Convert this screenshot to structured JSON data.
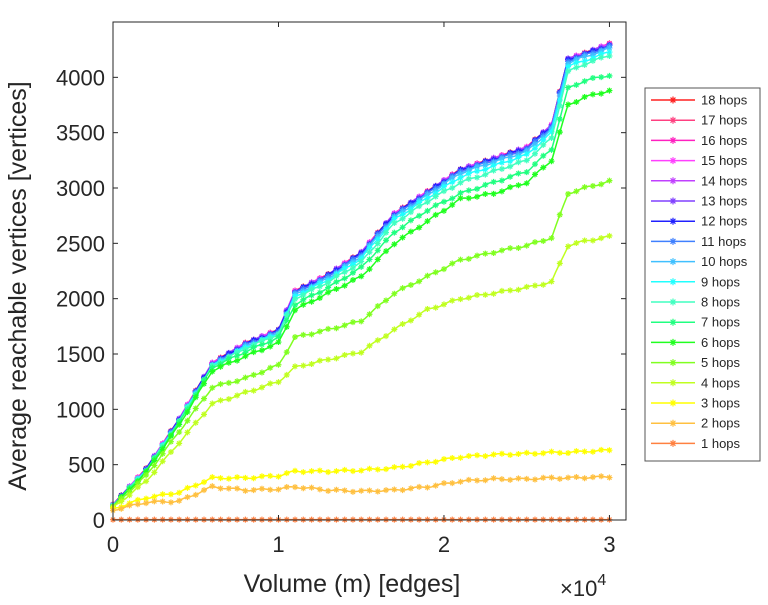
{
  "chart_data": {
    "type": "line",
    "title": "",
    "xlabel": "Volume (m) [edges]",
    "ylabel": "Average reachable vertices [vertices]",
    "x_multiplier_label": "×10",
    "x_multiplier_exp": "4",
    "xlim": [
      0,
      31000
    ],
    "ylim": [
      0,
      4500
    ],
    "xticks": [
      0,
      10000,
      20000,
      30000
    ],
    "xtick_labels": [
      "0",
      "1",
      "2",
      "3"
    ],
    "yticks": [
      0,
      500,
      1000,
      1500,
      2000,
      2500,
      3000,
      3500,
      4000
    ],
    "ytick_labels": [
      "0",
      "500",
      "1000",
      "1500",
      "2000",
      "2500",
      "3000",
      "3500",
      "4000"
    ],
    "grid": false,
    "legend_position": "right-outside",
    "x": [
      0,
      2000,
      4000,
      6000,
      8000,
      10000,
      11000,
      13000,
      15000,
      17000,
      19000,
      21000,
      23000,
      25000,
      26500,
      27500,
      28500,
      30000
    ],
    "series": [
      {
        "name": "18 hops",
        "color": "#ff2020",
        "values": [
          135,
          460,
          910,
          1415,
          1595,
          1715,
          2065,
          2215,
          2415,
          2765,
          2965,
          3165,
          3265,
          3365,
          3565,
          4165,
          4215,
          4300
        ]
      },
      {
        "name": "17 hops",
        "color": "#ff4080",
        "values": [
          135,
          460,
          910,
          1415,
          1595,
          1715,
          2065,
          2215,
          2415,
          2765,
          2965,
          3165,
          3265,
          3365,
          3565,
          4165,
          4215,
          4300
        ]
      },
      {
        "name": "16 hops",
        "color": "#ff20c0",
        "values": [
          135,
          460,
          910,
          1415,
          1595,
          1715,
          2065,
          2215,
          2415,
          2765,
          2965,
          3165,
          3265,
          3365,
          3565,
          4165,
          4215,
          4300
        ]
      },
      {
        "name": "15 hops",
        "color": "#ff40ff",
        "values": [
          135,
          460,
          910,
          1415,
          1595,
          1715,
          2065,
          2215,
          2415,
          2765,
          2965,
          3165,
          3265,
          3365,
          3565,
          4165,
          4215,
          4300
        ]
      },
      {
        "name": "14 hops",
        "color": "#c040ff",
        "values": [
          135,
          460,
          910,
          1415,
          1595,
          1715,
          2065,
          2215,
          2415,
          2765,
          2965,
          3165,
          3265,
          3365,
          3565,
          4165,
          4215,
          4300
        ]
      },
      {
        "name": "13 hops",
        "color": "#8040ff",
        "values": [
          133,
          458,
          908,
          1412,
          1592,
          1712,
          2062,
          2212,
          2412,
          2762,
          2962,
          3162,
          3262,
          3362,
          3562,
          4162,
          4212,
          4295
        ]
      },
      {
        "name": "12 hops",
        "color": "#2020ff",
        "values": [
          132,
          455,
          905,
          1410,
          1590,
          1710,
          2060,
          2210,
          2410,
          2760,
          2960,
          3160,
          3260,
          3360,
          3560,
          4160,
          4210,
          4290
        ]
      },
      {
        "name": "11 hops",
        "color": "#4080ff",
        "values": [
          130,
          450,
          900,
          1400,
          1580,
          1700,
          2050,
          2200,
          2400,
          2750,
          2950,
          3150,
          3250,
          3350,
          3550,
          4150,
          4200,
          4280
        ]
      },
      {
        "name": "10 hops",
        "color": "#40c0ff",
        "values": [
          130,
          448,
          895,
          1395,
          1570,
          1690,
          2035,
          2185,
          2385,
          2735,
          2935,
          3135,
          3235,
          3330,
          3530,
          4130,
          4185,
          4260
        ]
      },
      {
        "name": "9 hops",
        "color": "#20ffff",
        "values": [
          130,
          446,
          892,
          1392,
          1560,
          1685,
          2020,
          2170,
          2365,
          2715,
          2910,
          3100,
          3200,
          3300,
          3500,
          4100,
          4150,
          4230
        ]
      },
      {
        "name": "8 hops",
        "color": "#40ffc0",
        "values": [
          130,
          445,
          890,
          1390,
          1550,
          1680,
          2000,
          2150,
          2330,
          2680,
          2880,
          3050,
          3150,
          3250,
          3450,
          4050,
          4120,
          4200
        ]
      },
      {
        "name": "7 hops",
        "color": "#20ff80",
        "values": [
          128,
          440,
          880,
          1380,
          1520,
          1650,
          1950,
          2100,
          2280,
          2600,
          2800,
          2950,
          3050,
          3150,
          3350,
          3900,
          3970,
          4020
        ]
      },
      {
        "name": "6 hops",
        "color": "#20ff20",
        "values": [
          125,
          430,
          860,
          1350,
          1480,
          1600,
          1900,
          2050,
          2200,
          2500,
          2700,
          2900,
          2950,
          3050,
          3250,
          3750,
          3820,
          3880
        ]
      },
      {
        "name": "5 hops",
        "color": "#80ff20",
        "values": [
          120,
          400,
          800,
          1200,
          1280,
          1400,
          1650,
          1720,
          1800,
          2050,
          2200,
          2350,
          2420,
          2480,
          2550,
          2950,
          3000,
          3060
        ]
      },
      {
        "name": "4 hops",
        "color": "#c0ff20",
        "values": [
          110,
          350,
          700,
          1050,
          1150,
          1250,
          1380,
          1450,
          1520,
          1720,
          1900,
          2000,
          2050,
          2100,
          2150,
          2480,
          2520,
          2560
        ]
      },
      {
        "name": "3 hops",
        "color": "#ffff00",
        "values": [
          100,
          200,
          250,
          380,
          380,
          400,
          440,
          440,
          450,
          470,
          520,
          570,
          590,
          600,
          610,
          610,
          620,
          630
        ]
      },
      {
        "name": "2 hops",
        "color": "#ffc040",
        "values": [
          90,
          160,
          170,
          300,
          270,
          280,
          300,
          270,
          260,
          270,
          300,
          350,
          370,
          370,
          380,
          380,
          385,
          390
        ]
      },
      {
        "name": "1 hops",
        "color": "#ff8040",
        "values": [
          3,
          3,
          3,
          3,
          3,
          3,
          3,
          3,
          3,
          3,
          3,
          3,
          3,
          3,
          3,
          3,
          3,
          3
        ]
      }
    ]
  }
}
